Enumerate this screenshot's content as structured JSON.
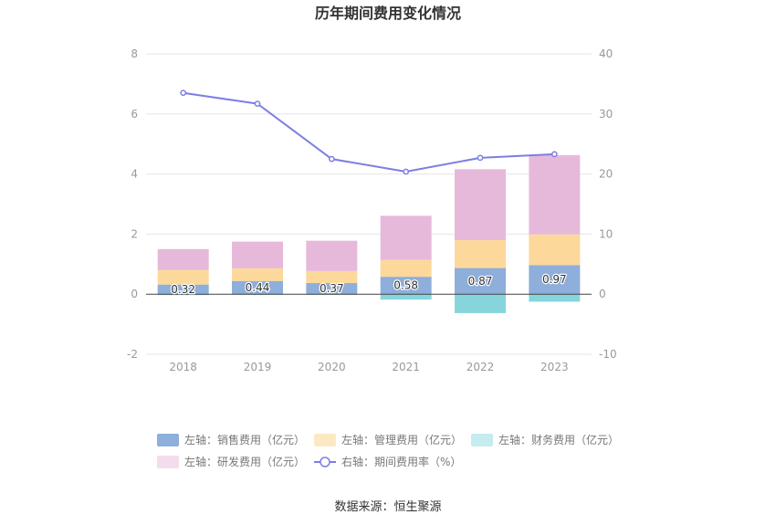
{
  "chart_data": {
    "type": "bar",
    "title": "历年期间费用变化情况",
    "categories": [
      "2018",
      "2019",
      "2020",
      "2021",
      "2022",
      "2023"
    ],
    "left_axis": {
      "ylim": [
        -2,
        8
      ],
      "ticks": [
        "-2",
        "0",
        "2",
        "4",
        "6",
        "8"
      ]
    },
    "right_axis": {
      "ylim": [
        -10,
        40
      ],
      "ticks": [
        "-10",
        "0",
        "10",
        "20",
        "30",
        "40"
      ]
    },
    "series": [
      {
        "name": "左轴：销售费用（亿元）",
        "type": "bar",
        "axis": "left",
        "color": "#8eaedb",
        "values": [
          0.32,
          0.44,
          0.37,
          0.58,
          0.87,
          0.97
        ],
        "labels": [
          "0.32",
          "0.44",
          "0.37",
          "0.58",
          "0.87",
          "0.97"
        ]
      },
      {
        "name": "左轴：管理费用（亿元）",
        "type": "bar",
        "axis": "left",
        "color": "#fdd89b",
        "values": [
          0.48,
          0.42,
          0.4,
          0.56,
          0.93,
          1.02
        ]
      },
      {
        "name": "左轴：财务费用（亿元）",
        "type": "bar",
        "axis": "left",
        "color": "#86d5dc",
        "values": [
          -0.03,
          -0.02,
          -0.02,
          -0.18,
          -0.63,
          -0.25
        ]
      },
      {
        "name": "左轴：研发费用（亿元）",
        "type": "bar",
        "axis": "left",
        "color": "#e6b9da",
        "values": [
          0.7,
          0.89,
          1.01,
          1.47,
          2.36,
          2.64
        ]
      },
      {
        "name": "右轴：期间费用率（%）",
        "type": "line",
        "axis": "right",
        "color": "#7b7fe3",
        "values": [
          33.5,
          31.7,
          22.5,
          20.4,
          22.7,
          23.3
        ]
      }
    ],
    "legend_position": "bottom",
    "grid": true
  },
  "footer": {
    "source": "数据来源：恒生聚源"
  }
}
